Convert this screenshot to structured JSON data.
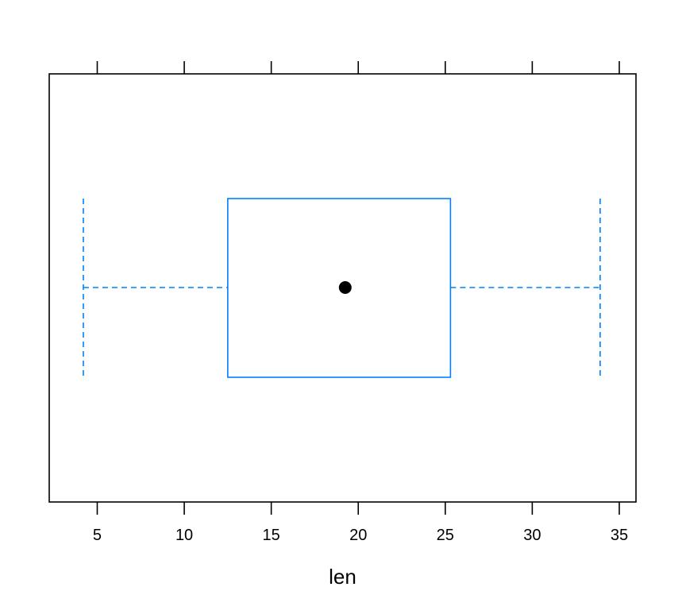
{
  "chart_data": {
    "type": "box",
    "orientation": "horizontal",
    "xlabel": "len",
    "xlim": [
      2.24,
      35.96
    ],
    "ticks": [
      5,
      10,
      15,
      20,
      25,
      30,
      35
    ],
    "tick_labels": [
      "5",
      "10",
      "15",
      "20",
      "25",
      "30",
      "35"
    ],
    "box": {
      "min": 4.2,
      "q1": 12.5,
      "median": 19.25,
      "q3": 25.3,
      "max": 33.9
    },
    "grid": false,
    "legend": "none"
  },
  "colors": {
    "box": "#0080ff",
    "median_dot": "#000000",
    "axis": "#000000",
    "background": "#ffffff"
  }
}
